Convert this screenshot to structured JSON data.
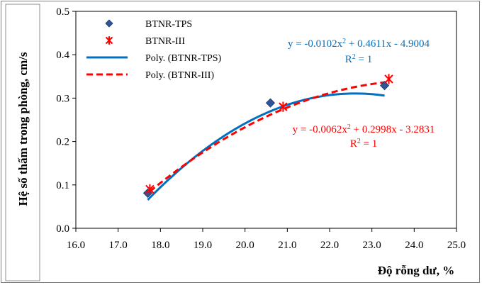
{
  "chart_data": {
    "type": "scatter",
    "xlabel": "Độ rỗng dư, %",
    "ylabel": "Hệ số thấm trong phòng, cm/s",
    "xlim": [
      16.0,
      25.0
    ],
    "ylim": [
      0.0,
      0.5
    ],
    "xticks": [
      "16.0",
      "17.0",
      "18.0",
      "19.0",
      "20.0",
      "21.0",
      "22.0",
      "23.0",
      "24.0",
      "25.0"
    ],
    "yticks": [
      "0.0",
      "0.1",
      "0.2",
      "0.3",
      "0.4",
      "0.5"
    ],
    "series": [
      {
        "name": "BTNR-TPS",
        "marker": "diamond",
        "color": "#2e5597",
        "points": [
          [
            17.7,
            0.081
          ],
          [
            20.6,
            0.289
          ],
          [
            23.3,
            0.329
          ]
        ]
      },
      {
        "name": "BTNR-III",
        "marker": "asterisk",
        "color": "#ff0000",
        "points": [
          [
            17.75,
            0.09
          ],
          [
            20.9,
            0.28
          ],
          [
            23.4,
            0.344
          ]
        ]
      }
    ],
    "trendlines": [
      {
        "name": "Poly. (BTNR-TPS)",
        "color": "#0070c0",
        "dash": false,
        "coefficients": [
          -0.0102,
          0.4611,
          -4.9004
        ],
        "x_range": [
          17.7,
          23.3
        ],
        "equation_parts": [
          "y = -0.0102x",
          "2",
          " + 0.4611x - 4.9004"
        ],
        "r2_parts": [
          "R",
          "2",
          " = 1"
        ]
      },
      {
        "name": "Poly. (BTNR-III)",
        "color": "#ff0000",
        "dash": true,
        "coefficients": [
          -0.0062,
          0.2998,
          -3.2831
        ],
        "x_range": [
          17.75,
          23.4
        ],
        "equation_parts": [
          "y = -0.0062x",
          "2",
          " + 0.2998x - 3.2831"
        ],
        "r2_parts": [
          "R",
          "2",
          " = 1"
        ]
      }
    ],
    "legend": [
      "BTNR-TPS",
      "BTNR-III",
      "Poly. (BTNR-TPS)",
      "Poly. (BTNR-III)"
    ],
    "legend_position": "top-left"
  }
}
